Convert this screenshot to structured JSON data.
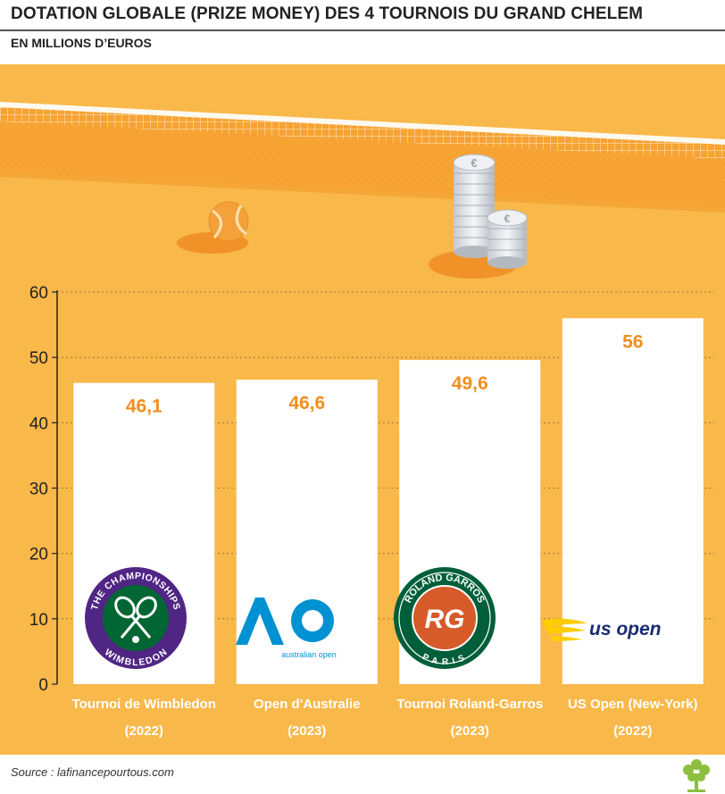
{
  "header": {
    "title": "DOTATION GLOBALE (PRIZE MONEY) DES 4 TOURNOIS DU GRAND CHELEM",
    "subtitle": "EN MILLIONS D’EUROS"
  },
  "footer": {
    "source": "Source : lafinancepourtous.com"
  },
  "logos": {
    "wimbledon": {
      "top": "THE CHAMPIONSHIPS",
      "bottom": "WIMBLEDON"
    },
    "australian_open": {
      "mark": "AO",
      "text": "australian open"
    },
    "roland_garros": {
      "top": "ROLAND GARROS",
      "mark": "RG",
      "bottom": "PARIS"
    },
    "us_open": {
      "text": "us open"
    }
  },
  "colors": {
    "background": "#f9b84a",
    "value_label": "#ef8e1f",
    "bar": "#ffffff",
    "axis": "#222222"
  },
  "chart_data": {
    "type": "bar",
    "title": "DOTATION GLOBALE (PRIZE MONEY) DES 4 TOURNOIS DU GRAND CHELEM",
    "subtitle": "EN MILLIONS D’EUROS",
    "categories": [
      [
        "Tournoi de Wimbledon",
        "(2022)"
      ],
      [
        "Open d'Australie",
        "(2023)"
      ],
      [
        "Tournoi Roland-Garros",
        "(2023)"
      ],
      [
        "US Open (New-York)",
        "(2022)"
      ]
    ],
    "values": [
      46.1,
      46.6,
      49.6,
      56
    ],
    "value_labels": [
      "46,1",
      "46,6",
      "49,6",
      "56"
    ],
    "ylim": [
      0,
      60
    ],
    "yticks": [
      0,
      10,
      20,
      30,
      40,
      50,
      60
    ],
    "grid": true,
    "legend": "none"
  }
}
